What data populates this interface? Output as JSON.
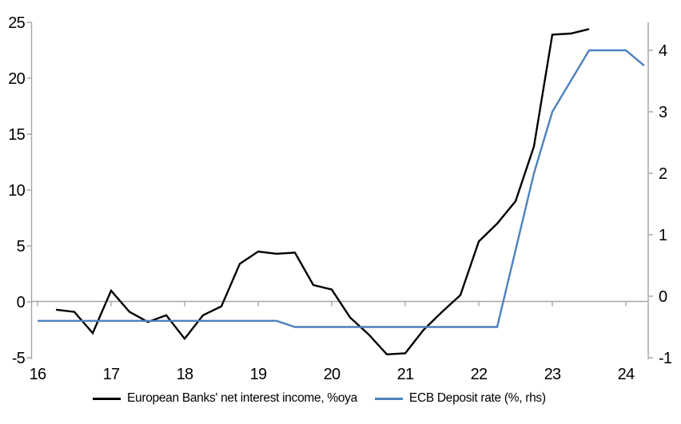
{
  "chart_data": {
    "type": "line",
    "title": "",
    "grid": false,
    "background": "#FFFFFF",
    "x_axis": {
      "tick_labels": [
        "16",
        "17",
        "18",
        "19",
        "20",
        "21",
        "22",
        "23",
        "24"
      ],
      "tick_values": [
        2016,
        2017,
        2018,
        2019,
        2020,
        2021,
        2022,
        2023,
        2024
      ],
      "range": [
        2015.92,
        2024.35
      ],
      "axis_position": "zero-line"
    },
    "left_axis": {
      "tick_labels": [
        "-5",
        "0",
        "5",
        "10",
        "15",
        "20",
        "25"
      ],
      "tick_values": [
        -5,
        0,
        5,
        10,
        15,
        20,
        25
      ],
      "range": [
        -5.1,
        25
      ]
    },
    "right_axis": {
      "tick_labels": [
        "-1",
        "0",
        "1",
        "2",
        "3",
        "4"
      ],
      "tick_values": [
        -1,
        0,
        1,
        2,
        3,
        4
      ],
      "range": [
        -1.05,
        4.45
      ]
    },
    "series": [
      {
        "name": "European Banks' net interest income, %oya",
        "axis": "left",
        "color": "#000000",
        "x_unit": "decimal-year-quarterly",
        "x_start": 2016.25,
        "x_step": 0.25,
        "values": [
          -0.7,
          -0.9,
          -2.8,
          1.0,
          -0.9,
          -1.8,
          -1.2,
          -3.3,
          -1.2,
          -0.4,
          3.4,
          4.5,
          4.3,
          4.4,
          1.5,
          1.1,
          -1.4,
          -2.9,
          -4.7,
          -4.6,
          -2.5,
          -0.9,
          0.6,
          5.4,
          7.0,
          9.0,
          13.9,
          23.9,
          24.0,
          24.4
        ]
      },
      {
        "name": "ECB Deposit rate (%, rhs)",
        "axis": "right",
        "color": "#4E81BC",
        "x_unit": "decimal-year-quarterly",
        "x_start": 2016.0,
        "x_step": 0.25,
        "values": [
          -0.4,
          -0.4,
          -0.4,
          -0.4,
          -0.4,
          -0.4,
          -0.4,
          -0.4,
          -0.4,
          -0.4,
          -0.4,
          -0.4,
          -0.4,
          -0.4,
          -0.5,
          -0.5,
          -0.5,
          -0.5,
          -0.5,
          -0.5,
          -0.5,
          -0.5,
          -0.5,
          -0.5,
          -0.5,
          -0.5,
          0.75,
          2.0,
          3.0,
          3.5,
          4.0,
          4.0,
          4.0,
          3.75
        ]
      }
    ],
    "legend": {
      "position": "bottom",
      "entries": [
        "European Banks' net interest income, %oya",
        "ECB Deposit rate (%, rhs)"
      ]
    },
    "colors": {
      "axis": "#A6A6A6",
      "series_black": "#000000",
      "series_blue": "#4E81BC"
    }
  }
}
